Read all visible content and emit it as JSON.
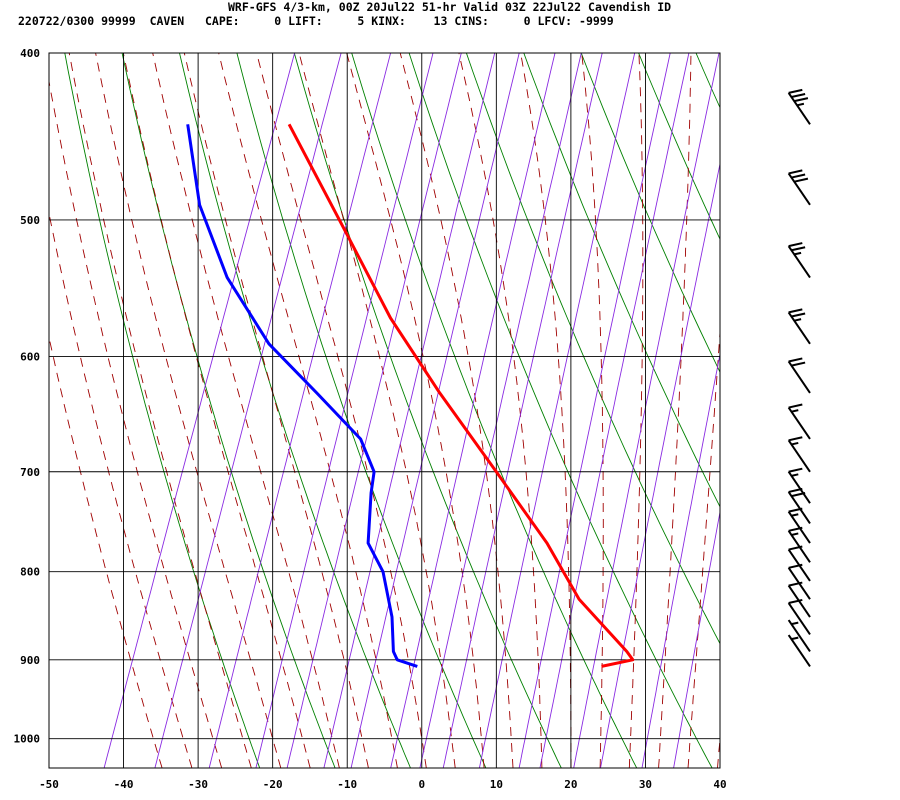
{
  "title": "WRF-GFS 4/3-km, 00Z 20Jul22 51-hr Valid 03Z 22Jul22 Cavendish ID",
  "indices": {
    "stamp": "220722/0300 99999",
    "station": "CAVEN",
    "cape_label": "CAPE:",
    "cape": "0",
    "lift_label": "LIFT:",
    "lift": "5",
    "kinx_label": "KINX:",
    "kinx": "13",
    "cins_label": "CINS:",
    "cins": "0",
    "lfcv_label": "LFCV:",
    "lfcv": "-9999"
  },
  "colors": {
    "temperature": "#ff0000",
    "dewpoint": "#0000ff",
    "dry_adiabat": "#008000",
    "moist_adiabat": "#a00000",
    "mixing_ratio": "#8a2be2",
    "grid": "#000000"
  },
  "chart_data": {
    "type": "line",
    "subtype": "skew-T log-P sounding",
    "xlabel": "",
    "ylabel": "",
    "xlim": [
      -50,
      40
    ],
    "ylim": [
      1040,
      400
    ],
    "y_scale": "log-pressure",
    "x_ticks": [
      -50,
      -40,
      -30,
      -20,
      -10,
      0,
      10,
      20,
      30,
      40
    ],
    "y_ticks": [
      400,
      500,
      600,
      700,
      800,
      900,
      1000
    ],
    "grid": true,
    "series": [
      {
        "key": "temperature",
        "x": [
          24.1,
          28.3,
          27.5,
          21.1,
          16.8,
          10.0,
          2.4,
          -4.2,
          -10.0,
          -17.8
        ],
        "y": [
          908,
          900,
          890,
          830,
          770,
          700,
          630,
          570,
          510,
          440
        ]
      },
      {
        "key": "dewpoint",
        "x": [
          -0.6,
          -3.3,
          -3.8,
          -4.0,
          -5.2,
          -7.2,
          -6.8,
          -6.4,
          -8.2,
          -14.1,
          -20.5,
          -26.1,
          -29.8,
          -31.4
        ],
        "y": [
          908,
          900,
          890,
          850,
          800,
          770,
          720,
          700,
          670,
          630,
          590,
          540,
          490,
          440
        ]
      }
    ],
    "wind_barbs": [
      {
        "p": 440,
        "flags": 0,
        "full": 3,
        "half": 1
      },
      {
        "p": 490,
        "flags": 0,
        "full": 3,
        "half": 0
      },
      {
        "p": 540,
        "flags": 0,
        "full": 2,
        "half": 1
      },
      {
        "p": 590,
        "flags": 0,
        "full": 2,
        "half": 1
      },
      {
        "p": 630,
        "flags": 0,
        "full": 2,
        "half": 0
      },
      {
        "p": 670,
        "flags": 0,
        "full": 1,
        "half": 1
      },
      {
        "p": 700,
        "flags": 0,
        "full": 1,
        "half": 1
      },
      {
        "p": 730,
        "flags": 0,
        "full": 1,
        "half": 1
      },
      {
        "p": 750,
        "flags": 0,
        "full": 2,
        "half": 0
      },
      {
        "p": 770,
        "flags": 0,
        "full": 1,
        "half": 1
      },
      {
        "p": 790,
        "flags": 0,
        "full": 1,
        "half": 1
      },
      {
        "p": 810,
        "flags": 0,
        "full": 1,
        "half": 0
      },
      {
        "p": 830,
        "flags": 0,
        "full": 1,
        "half": 0
      },
      {
        "p": 850,
        "flags": 0,
        "full": 1,
        "half": 0
      },
      {
        "p": 870,
        "flags": 0,
        "full": 1,
        "half": 0
      },
      {
        "p": 890,
        "flags": 0,
        "full": 0,
        "half": 1
      },
      {
        "p": 908,
        "flags": 0,
        "full": 0,
        "half": 1
      }
    ]
  }
}
